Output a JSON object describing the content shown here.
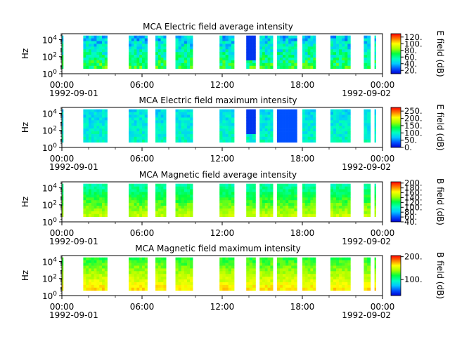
{
  "figure": {
    "time_ticks": [
      "00:00",
      "06:00",
      "12:00",
      "18:00",
      "00:00"
    ],
    "date_start": "1992-09-01",
    "date_end": "1992-09-02",
    "ylabel": "Hz",
    "ytick_labels": [
      "10^0",
      "10^2",
      "10^4"
    ]
  },
  "chart_data": [
    {
      "type": "heatmap",
      "title": "MCA  Electric field average intensity",
      "xlabel": "",
      "ylabel": "Hz",
      "x_range_hours": [
        0,
        24
      ],
      "y_range_hz": [
        1,
        50000
      ],
      "y_scale": "log",
      "colorbar": {
        "label": "E field (dB)",
        "range": [
          10,
          130
        ],
        "ticks": [
          "20.",
          "40.",
          "60.",
          "80.",
          "100.",
          "120."
        ],
        "tick_values": [
          20,
          40,
          60,
          80,
          100,
          120
        ]
      },
      "segments_hours": [
        [
          0.0,
          0.1
        ],
        [
          1.6,
          3.4
        ],
        [
          5.0,
          6.4
        ],
        [
          7.0,
          7.8
        ],
        [
          8.5,
          9.8
        ],
        [
          11.8,
          12.9
        ],
        [
          13.8,
          14.5
        ],
        [
          14.8,
          15.8
        ],
        [
          16.1,
          17.6
        ],
        [
          18.0,
          19.0
        ],
        [
          20.1,
          21.6
        ],
        [
          22.6,
          23.1
        ],
        [
          23.4,
          23.5
        ]
      ],
      "value_profile": {
        "low_freq_db": 70,
        "high_freq_db": 40,
        "variability_db": 15
      },
      "grid": false
    },
    {
      "type": "heatmap",
      "title": "MCA  Electric field maximum intensity",
      "xlabel": "",
      "ylabel": "Hz",
      "x_range_hours": [
        0,
        24
      ],
      "y_range_hz": [
        1,
        50000
      ],
      "y_scale": "log",
      "colorbar": {
        "label": "E field (dB)",
        "range": [
          0,
          275
        ],
        "ticks": [
          "0.",
          "50.",
          "100.",
          "150.",
          "200.",
          "250."
        ],
        "tick_values": [
          0,
          50,
          100,
          150,
          200,
          250
        ]
      },
      "segments_hours": [
        [
          0.0,
          0.1
        ],
        [
          1.6,
          3.4
        ],
        [
          5.0,
          6.4
        ],
        [
          7.0,
          7.8
        ],
        [
          8.5,
          9.8
        ],
        [
          11.8,
          12.9
        ],
        [
          13.8,
          14.5
        ],
        [
          14.8,
          15.8
        ],
        [
          16.1,
          17.6
        ],
        [
          18.0,
          19.0
        ],
        [
          20.1,
          21.6
        ],
        [
          22.6,
          23.1
        ],
        [
          23.4,
          23.5
        ]
      ],
      "value_profile": {
        "low_freq_db": 100,
        "high_freq_db": 80,
        "variability_db": 20
      },
      "grid": false
    },
    {
      "type": "heatmap",
      "title": "MCA  Magnetic field average intensity",
      "xlabel": "",
      "ylabel": "Hz",
      "x_range_hours": [
        0,
        24
      ],
      "y_range_hz": [
        1,
        50000
      ],
      "y_scale": "log",
      "colorbar": {
        "label": "B field (dB)",
        "range": [
          40,
          205
        ],
        "ticks": [
          "40.",
          "60.",
          "80.",
          "100.",
          "120.",
          "140.",
          "160.",
          "180.",
          "200."
        ],
        "tick_values": [
          40,
          60,
          80,
          100,
          120,
          140,
          160,
          180,
          200
        ]
      },
      "segments_hours": [
        [
          0.0,
          0.1
        ],
        [
          1.6,
          3.4
        ],
        [
          5.0,
          6.4
        ],
        [
          7.0,
          7.8
        ],
        [
          8.5,
          9.8
        ],
        [
          11.8,
          12.9
        ],
        [
          13.8,
          14.5
        ],
        [
          14.8,
          15.8
        ],
        [
          16.1,
          17.6
        ],
        [
          18.0,
          19.0
        ],
        [
          20.1,
          21.6
        ],
        [
          22.6,
          23.1
        ],
        [
          23.4,
          23.5
        ]
      ],
      "value_profile": {
        "low_freq_db": 150,
        "high_freq_db": 105,
        "variability_db": 8
      },
      "grid": false
    },
    {
      "type": "heatmap",
      "title": "MCA  Magnetic field maximum intensity",
      "xlabel": "",
      "ylabel": "Hz",
      "x_range_hours": [
        0,
        24
      ],
      "y_range_hz": [
        1,
        50000
      ],
      "y_scale": "log",
      "colorbar": {
        "label": "B field (dB)",
        "range": [
          30,
          205
        ],
        "ticks": [
          "100.",
          "200."
        ],
        "tick_values": [
          100,
          200
        ]
      },
      "segments_hours": [
        [
          0.0,
          0.1
        ],
        [
          1.6,
          3.4
        ],
        [
          5.0,
          6.4
        ],
        [
          7.0,
          7.8
        ],
        [
          8.5,
          9.8
        ],
        [
          11.8,
          12.9
        ],
        [
          13.8,
          14.5
        ],
        [
          14.8,
          15.8
        ],
        [
          16.1,
          17.6
        ],
        [
          18.0,
          19.0
        ],
        [
          20.1,
          21.6
        ],
        [
          22.6,
          23.1
        ],
        [
          23.4,
          23.5
        ]
      ],
      "value_profile": {
        "low_freq_db": 165,
        "high_freq_db": 120,
        "variability_db": 8
      },
      "grid": false
    }
  ]
}
